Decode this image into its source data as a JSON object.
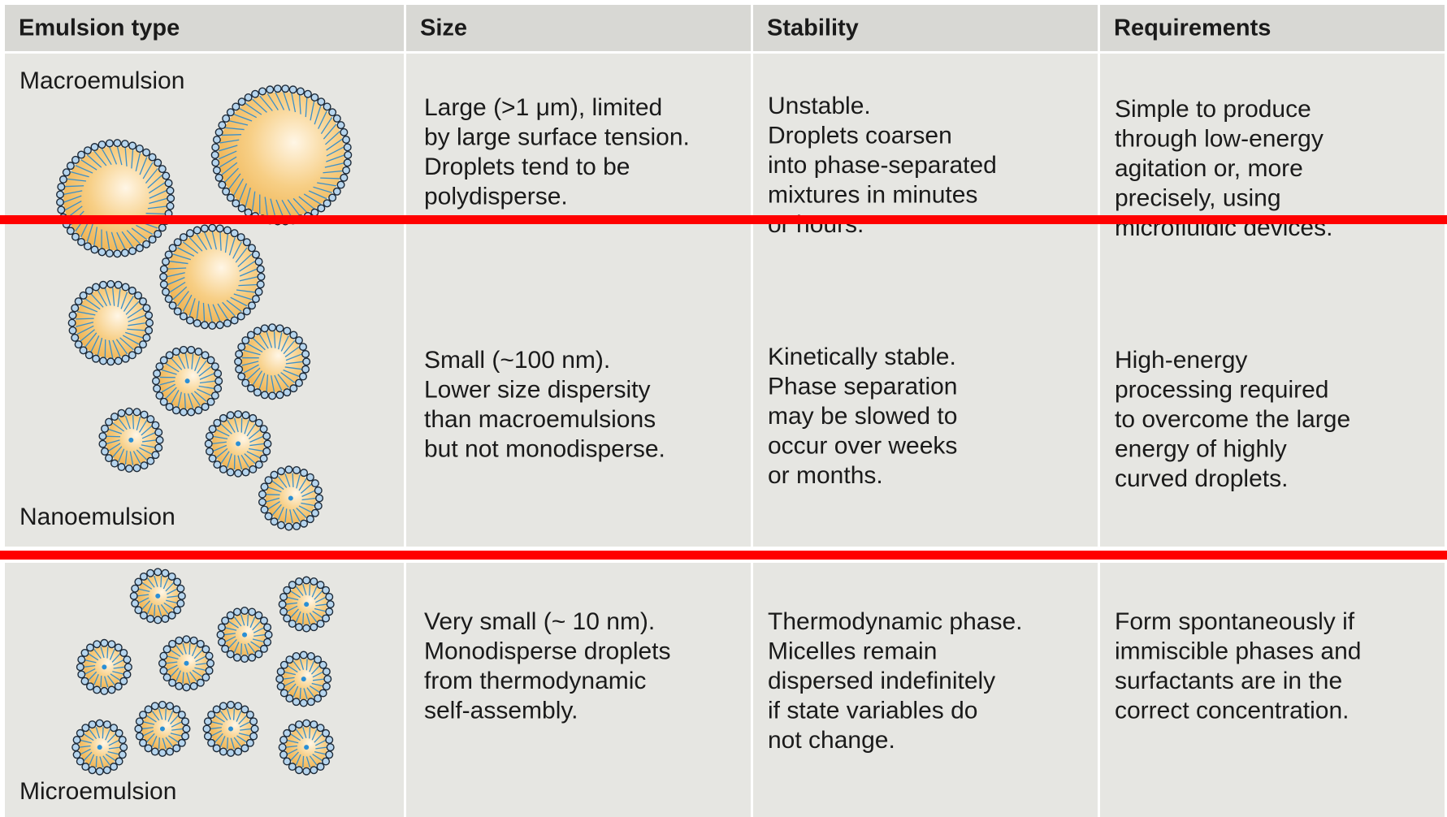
{
  "table": {
    "header": [
      "Emulsion type",
      "Size",
      "Stability",
      "Requirements"
    ],
    "rows": [
      {
        "type": "Macroemulsion",
        "size": [
          "Large (>1 μm), limited",
          "by large surface tension.",
          "Droplets tend to be",
          "polydisperse."
        ],
        "stability": [
          "Unstable.",
          "Droplets coarsen",
          "into phase-separated",
          "mixtures in minutes",
          "or hours."
        ],
        "requirements": [
          "Simple to produce",
          "through low-energy",
          "agitation or, more",
          "precisely, using",
          "microfluidic devices."
        ]
      },
      {
        "type": "Nanoemulsion",
        "size": [
          "Small (~100 nm).",
          "Lower size dispersity",
          "than macroemulsions",
          "but not monodisperse."
        ],
        "stability": [
          "Kinetically stable.",
          "Phase separation",
          "may be slowed to",
          "occur over weeks",
          "or months."
        ],
        "requirements": [
          "High-energy",
          "processing required",
          "to overcome the large",
          "energy of highly",
          "curved droplets."
        ]
      },
      {
        "type": "Microemulsion",
        "size": [
          "Very small (~ 10 nm).",
          "Monodisperse droplets",
          "from thermodynamic",
          "self-assembly."
        ],
        "stability": [
          "Thermodynamic phase.",
          "Micelles remain",
          "dispersed indefinitely",
          "if state variables do",
          "not change."
        ],
        "requirements": [
          "Form spontaneously if",
          "immiscible phases and",
          "surfactants are in the",
          "correct concentration."
        ]
      }
    ]
  }
}
